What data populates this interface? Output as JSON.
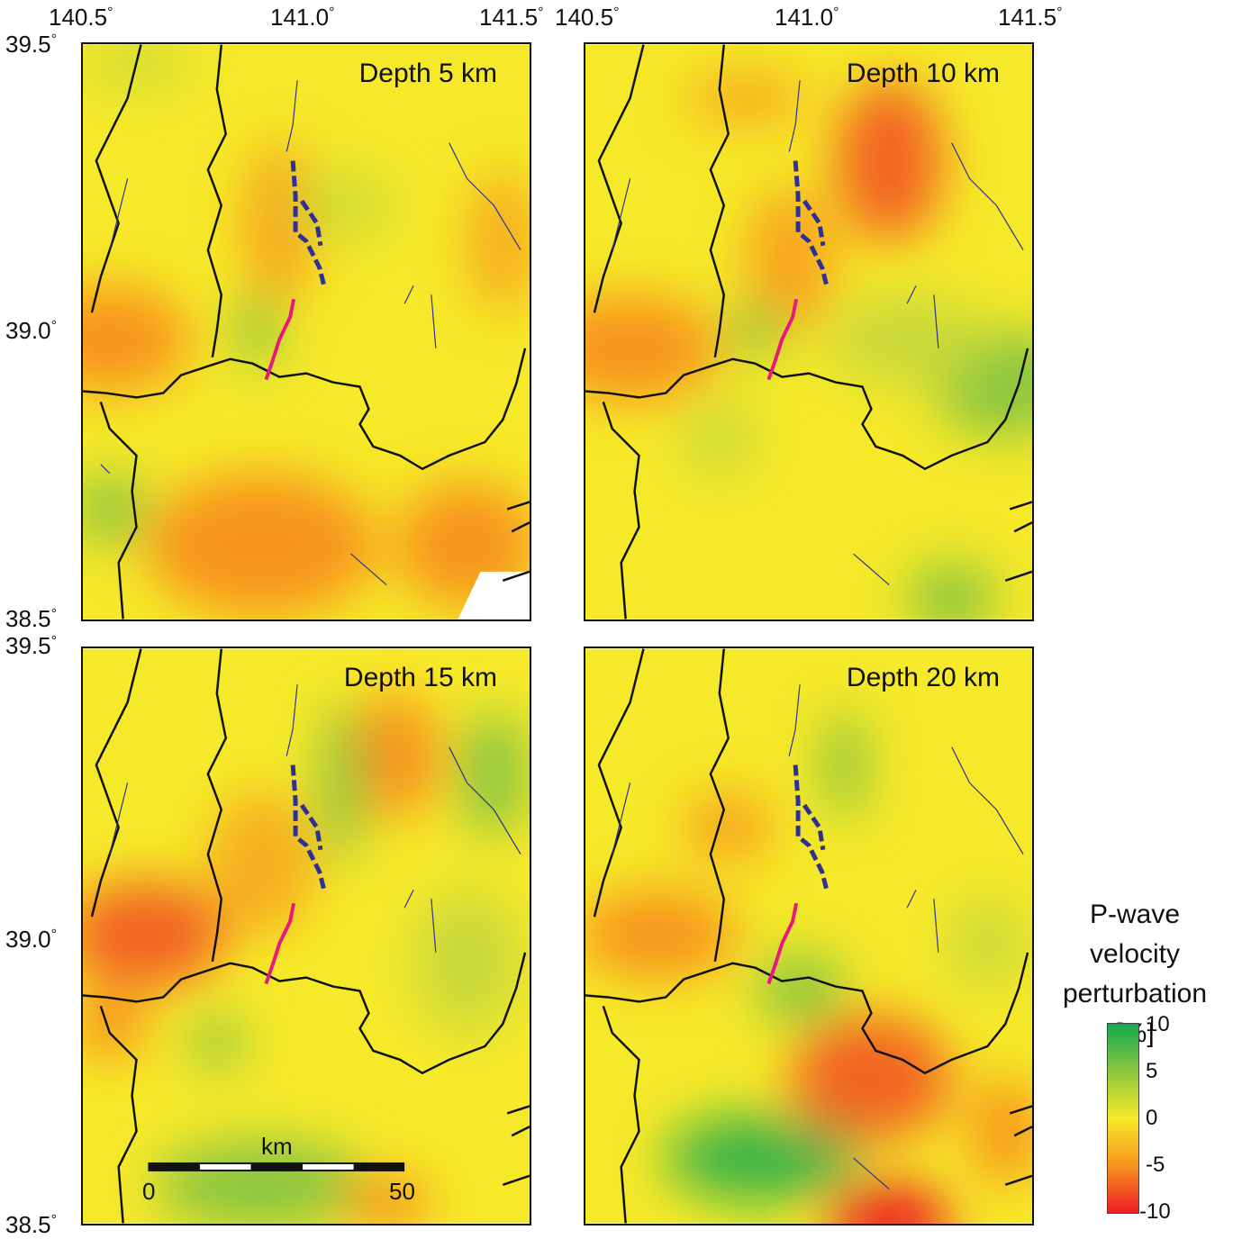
{
  "panels": [
    {
      "label": "Depth 5 km"
    },
    {
      "label": "Depth 10 km"
    },
    {
      "label": "Depth 15 km"
    },
    {
      "label": "Depth 20 km"
    }
  ],
  "longitude_ticks": [
    "140.5",
    "141.0",
    "141.5"
  ],
  "latitude_ticks": [
    "39.5",
    "39.0",
    "38.5"
  ],
  "degree_symbol": "°",
  "colorbar": {
    "title_lines": [
      "P-wave",
      "velocity",
      "perturbation",
      "[%]"
    ],
    "ticks": [
      "10",
      "5",
      "0",
      "-5",
      "-10"
    ],
    "colors": {
      "max": "#12a850",
      "mid": "#f6e92a",
      "min": "#ec1c24"
    }
  },
  "scale_bar": {
    "unit": "km",
    "start": "0",
    "end": "50"
  },
  "colors": {
    "fault_segments": "#2e3192",
    "highlight_fault": "#e6197c",
    "boundary": "#111111",
    "background_field": "#f6e92a"
  }
}
